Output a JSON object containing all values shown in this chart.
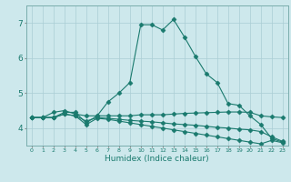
{
  "xlabel": "Humidex (Indice chaleur)",
  "bg_color": "#cde8ec",
  "line_color": "#1a7a6e",
  "grid_color": "#aacdd4",
  "xlim": [
    -0.5,
    23.5
  ],
  "ylim": [
    3.5,
    7.5
  ],
  "xticks": [
    0,
    1,
    2,
    3,
    4,
    5,
    6,
    7,
    8,
    9,
    10,
    11,
    12,
    13,
    14,
    15,
    16,
    17,
    18,
    19,
    20,
    21,
    22,
    23
  ],
  "yticks": [
    4,
    5,
    6,
    7
  ],
  "series": [
    {
      "x": [
        0,
        1,
        2,
        3,
        4,
        5,
        6,
        7,
        8,
        9,
        10,
        11,
        12,
        13,
        14,
        15,
        16,
        17,
        18,
        19,
        20,
        21,
        22,
        23
      ],
      "y": [
        4.3,
        4.3,
        4.3,
        4.45,
        4.45,
        4.15,
        4.35,
        4.75,
        5.0,
        5.3,
        6.95,
        6.95,
        6.8,
        7.1,
        6.6,
        6.05,
        5.55,
        5.3,
        4.7,
        4.65,
        4.35,
        4.1,
        3.7,
        3.6
      ],
      "marker": "D",
      "markersize": 2.5
    },
    {
      "x": [
        0,
        1,
        2,
        3,
        4,
        5,
        6,
        7,
        8,
        9,
        10,
        11,
        12,
        13,
        14,
        15,
        16,
        17,
        18,
        19,
        20,
        21,
        22,
        23
      ],
      "y": [
        4.3,
        4.3,
        4.45,
        4.5,
        4.4,
        4.35,
        4.35,
        4.35,
        4.35,
        4.35,
        4.38,
        4.38,
        4.38,
        4.4,
        4.42,
        4.43,
        4.44,
        4.45,
        4.46,
        4.46,
        4.45,
        4.35,
        4.32,
        4.3
      ],
      "marker": "D",
      "markersize": 2.5
    },
    {
      "x": [
        0,
        1,
        2,
        3,
        4,
        5,
        6,
        7,
        8,
        9,
        10,
        11,
        12,
        13,
        14,
        15,
        16,
        17,
        18,
        19,
        20,
        21,
        22,
        23
      ],
      "y": [
        4.3,
        4.3,
        4.3,
        4.4,
        4.35,
        4.2,
        4.3,
        4.28,
        4.25,
        4.22,
        4.2,
        4.18,
        4.15,
        4.12,
        4.1,
        4.08,
        4.05,
        4.02,
        4.0,
        3.97,
        3.95,
        3.9,
        3.75,
        3.62
      ],
      "marker": "D",
      "markersize": 2.5
    },
    {
      "x": [
        0,
        1,
        2,
        3,
        4,
        5,
        6,
        7,
        8,
        9,
        10,
        11,
        12,
        13,
        14,
        15,
        16,
        17,
        18,
        19,
        20,
        21,
        22,
        23
      ],
      "y": [
        4.3,
        4.3,
        4.3,
        4.4,
        4.35,
        4.1,
        4.28,
        4.25,
        4.2,
        4.15,
        4.1,
        4.05,
        4.0,
        3.95,
        3.9,
        3.85,
        3.8,
        3.75,
        3.7,
        3.65,
        3.6,
        3.55,
        3.65,
        3.58
      ],
      "marker": "D",
      "markersize": 2.5
    }
  ]
}
